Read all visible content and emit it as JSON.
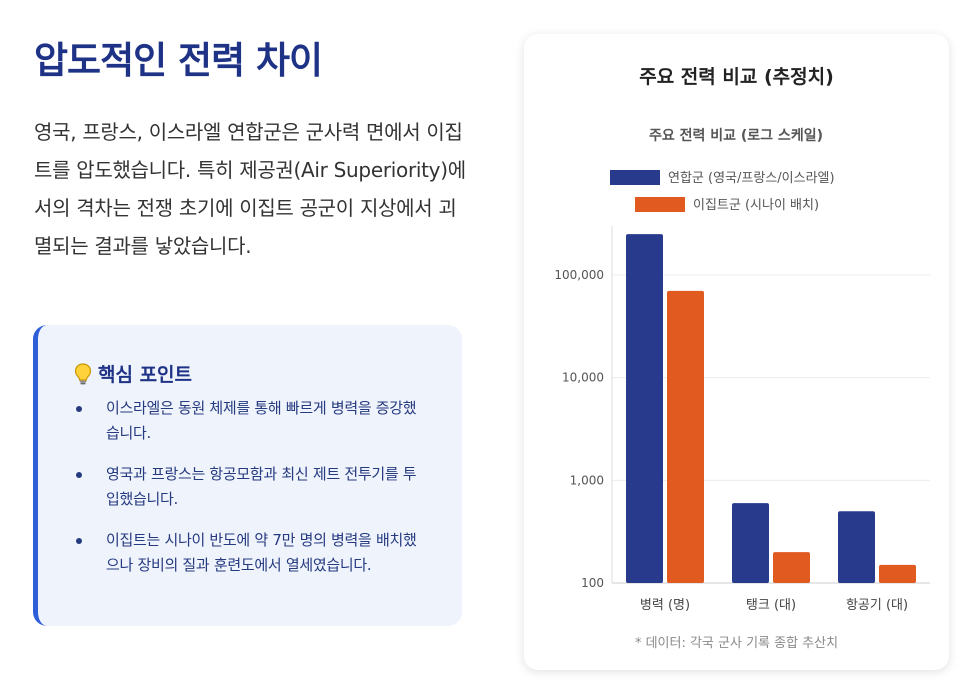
{
  "heading": "압도적인 전력 차이",
  "intro": "영국, 프랑스, 이스라엘 연합군은 군사력 면에서 이집트를 압도했습니다. 특히 제공권(Air Superiority)에서의 격차는 전쟁 초기에 이집트 공군이 지상에서 괴멸되는 결과를 낳았습니다.",
  "key_points": {
    "icon": "lightbulb-icon",
    "title": "핵심 포인트",
    "items": [
      "이스라엘은 동원 체제를 통해 빠르게 병력을 증강했습니다.",
      "영국과 프랑스는 항공모함과 최신 제트 전투기를 투입했습니다.",
      "이집트는 시나이 반도에 약 7만 명의 병력을 배치했으나 장비의 질과 훈련도에서 열세였습니다."
    ]
  },
  "card": {
    "title": "주요 전력 비교 (추정치)",
    "footnote": "* 데이터: 각국 군사 기록 종합 추산치"
  },
  "colors": {
    "allied": "#283a8c",
    "egypt": "#e15a1f",
    "heading": "#1e3286",
    "accent_border": "#2f5fd8"
  },
  "chart_data": {
    "type": "bar",
    "title": "주요 전력 비교 (로그 스케일)",
    "scale": "log",
    "categories": [
      "병력 (명)",
      "탱크 (대)",
      "항공기 (대)"
    ],
    "series": [
      {
        "name": "연합군 (영국/프랑스/이스라엘)",
        "values": [
          250000,
          600,
          500
        ],
        "color": "#283a8c"
      },
      {
        "name": "이집트군 (시나이 배치)",
        "values": [
          70000,
          200,
          150
        ],
        "color": "#e15a1f"
      }
    ],
    "yticks": [
      100,
      1000,
      10000,
      100000
    ],
    "ytick_labels": [
      "100",
      "1,000",
      "10,000",
      "100,000"
    ],
    "ylim": [
      100,
      300000
    ],
    "legend": "top"
  }
}
